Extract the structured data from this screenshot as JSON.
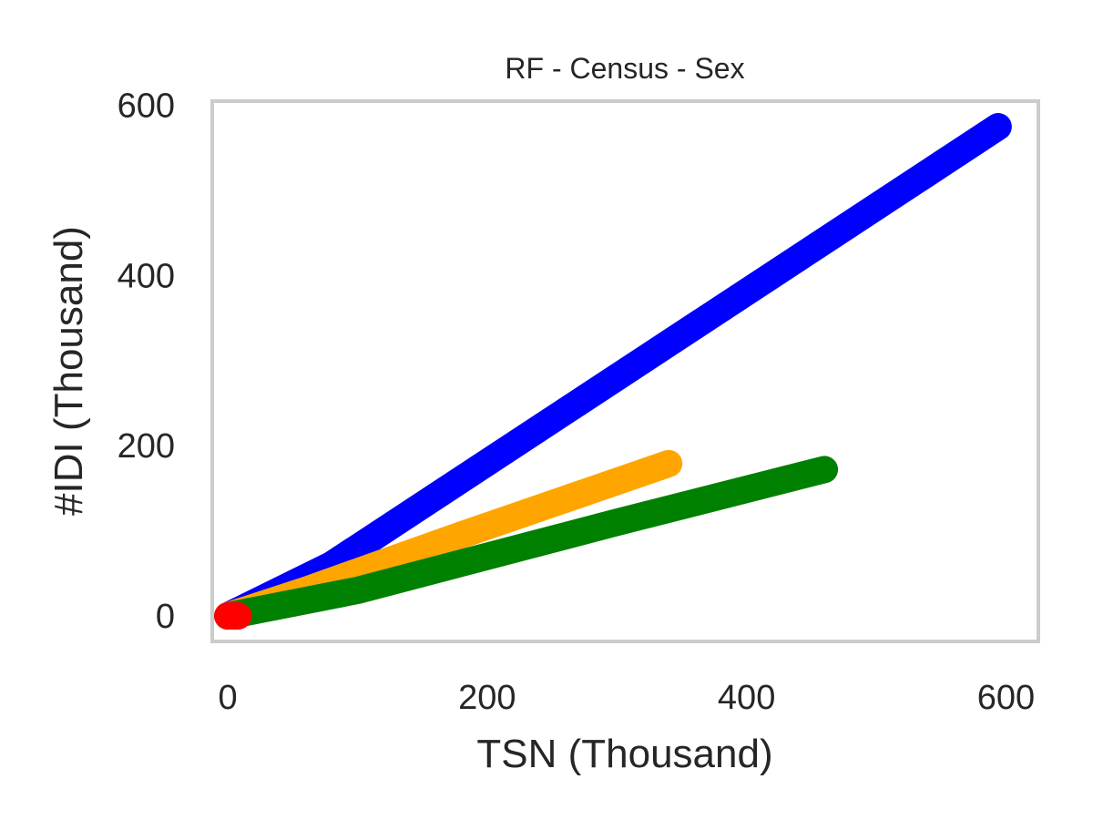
{
  "chart_data": {
    "type": "line",
    "title": "RF - Census - Sex",
    "xlabel": "TSN (Thousand)",
    "ylabel": "#IDI (Thousand)",
    "xlim": [
      -12,
      625
    ],
    "ylim": [
      -30,
      605
    ],
    "xticks": [
      0,
      200,
      400,
      600
    ],
    "yticks": [
      0,
      200,
      400,
      600
    ],
    "grid": false,
    "legend": "none",
    "series": [
      {
        "color": "#0000ff",
        "x": [
          0,
          80,
          594
        ],
        "y": [
          0,
          60,
          575
        ]
      },
      {
        "color": "#ffa500",
        "x": [
          0,
          60,
          180,
          340
        ],
        "y": [
          0,
          30,
          95,
          179
        ]
      },
      {
        "color": "#008000",
        "x": [
          0,
          100,
          300,
          460
        ],
        "y": [
          0,
          30,
          110,
          172
        ]
      },
      {
        "color": "#ff0000",
        "x": [
          0,
          8
        ],
        "y": [
          0,
          0
        ]
      }
    ]
  }
}
